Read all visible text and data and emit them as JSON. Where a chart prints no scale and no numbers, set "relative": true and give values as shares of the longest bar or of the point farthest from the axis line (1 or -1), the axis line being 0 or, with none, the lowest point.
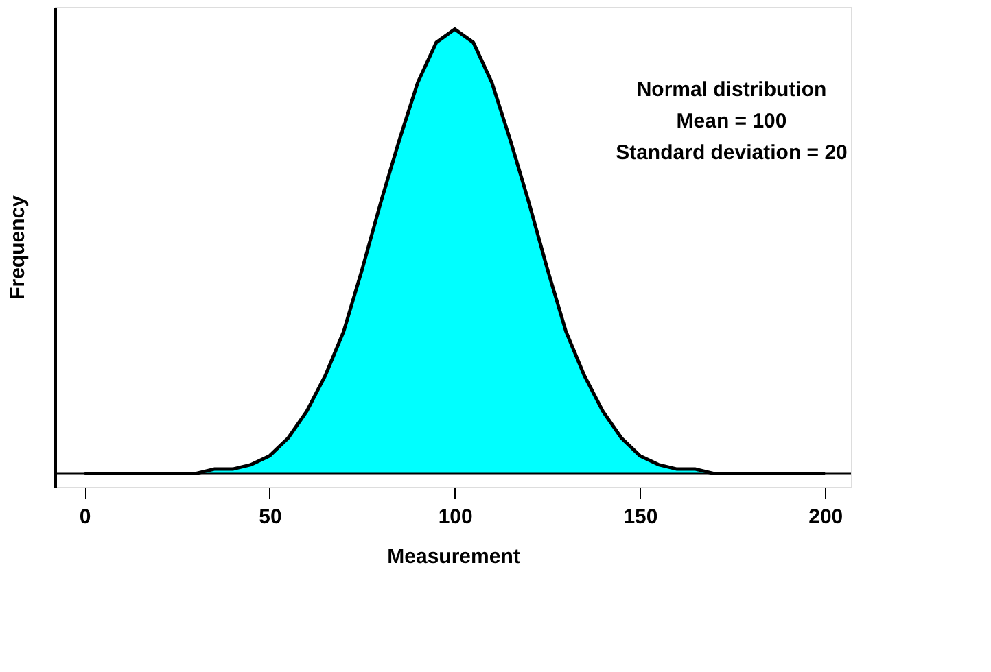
{
  "chart_data": {
    "type": "area",
    "relative": true,
    "xlabel": "Measurement",
    "ylabel": "Frequency",
    "annotations": [
      "Normal distribution",
      "Mean = 100",
      "Standard deviation = 20"
    ],
    "x": [
      0,
      5,
      10,
      15,
      20,
      25,
      30,
      35,
      40,
      45,
      50,
      55,
      60,
      65,
      70,
      75,
      80,
      85,
      90,
      95,
      100,
      105,
      110,
      115,
      120,
      125,
      130,
      135,
      140,
      145,
      150,
      155,
      160,
      165,
      170,
      175,
      180,
      185,
      190,
      195,
      200
    ],
    "xlim": [
      -8,
      207
    ],
    "xticks": [
      0,
      50,
      100,
      150,
      200
    ],
    "grid": false,
    "series": [
      {
        "color": "#00ffff",
        "values": [
          0,
          0,
          0,
          0,
          0,
          0,
          0,
          0.01,
          0.01,
          0.02,
          0.04,
          0.08,
          0.14,
          0.22,
          0.32,
          0.46,
          0.61,
          0.75,
          0.88,
          0.97,
          1,
          0.97,
          0.88,
          0.75,
          0.61,
          0.46,
          0.32,
          0.22,
          0.14,
          0.08,
          0.04,
          0.02,
          0.01,
          0.01,
          0,
          0,
          0,
          0,
          0,
          0,
          0
        ]
      }
    ]
  }
}
